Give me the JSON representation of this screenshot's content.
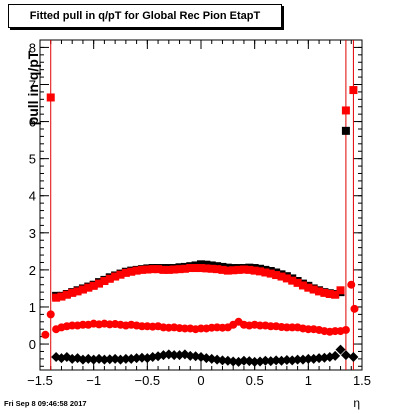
{
  "title": "Fitted pull in q/pT for Global Rec Pion EtapT",
  "ylabel": "pull in q/pT",
  "xlabel": "η",
  "footer": "Fri Sep  8 09:46:58 2017",
  "colors": {
    "black": "#000000",
    "red": "#ff0000",
    "lines": "#e00000"
  },
  "chart_data": {
    "type": "scatter",
    "xlim": [
      -1.5,
      1.5
    ],
    "ylim": [
      -0.7,
      8.2
    ],
    "xticks": [
      -1.5,
      -1,
      -0.5,
      0,
      0.5,
      1,
      1.5
    ],
    "xtick_labels": [
      "−1.5",
      "−1",
      "−0.5",
      "0",
      "0.5",
      "1",
      "1.5"
    ],
    "yticks": [
      0,
      1,
      2,
      3,
      4,
      5,
      6,
      7,
      8
    ],
    "ytick_labels": [
      "0",
      "1",
      "2",
      "3",
      "4",
      "5",
      "6",
      "7",
      "8"
    ],
    "vlines": [
      -1.4,
      1.35,
      1.42
    ],
    "series": [
      {
        "marker": "square",
        "color": "#000000",
        "points": [
          [
            -1.35,
            1.3
          ],
          [
            -1.3,
            1.3
          ],
          [
            -1.25,
            1.35
          ],
          [
            -1.2,
            1.4
          ],
          [
            -1.15,
            1.45
          ],
          [
            -1.1,
            1.5
          ],
          [
            -1.05,
            1.55
          ],
          [
            -1.0,
            1.6
          ],
          [
            -0.95,
            1.67
          ],
          [
            -0.9,
            1.73
          ],
          [
            -0.85,
            1.8
          ],
          [
            -0.8,
            1.85
          ],
          [
            -0.75,
            1.9
          ],
          [
            -0.7,
            1.95
          ],
          [
            -0.65,
            1.98
          ],
          [
            -0.6,
            2.0
          ],
          [
            -0.55,
            2.02
          ],
          [
            -0.5,
            2.04
          ],
          [
            -0.45,
            2.05
          ],
          [
            -0.4,
            2.05
          ],
          [
            -0.35,
            2.05
          ],
          [
            -0.3,
            2.05
          ],
          [
            -0.25,
            2.05
          ],
          [
            -0.2,
            2.07
          ],
          [
            -0.15,
            2.08
          ],
          [
            -0.1,
            2.1
          ],
          [
            -0.05,
            2.12
          ],
          [
            0.0,
            2.15
          ],
          [
            0.05,
            2.14
          ],
          [
            0.1,
            2.12
          ],
          [
            0.15,
            2.1
          ],
          [
            0.2,
            2.08
          ],
          [
            0.25,
            2.06
          ],
          [
            0.3,
            2.05
          ],
          [
            0.35,
            2.05
          ],
          [
            0.4,
            2.05
          ],
          [
            0.45,
            2.06
          ],
          [
            0.5,
            2.05
          ],
          [
            0.55,
            2.03
          ],
          [
            0.6,
            2.0
          ],
          [
            0.65,
            1.97
          ],
          [
            0.7,
            1.93
          ],
          [
            0.75,
            1.88
          ],
          [
            0.8,
            1.83
          ],
          [
            0.85,
            1.77
          ],
          [
            0.9,
            1.7
          ],
          [
            0.95,
            1.63
          ],
          [
            1.0,
            1.57
          ],
          [
            1.05,
            1.5
          ],
          [
            1.1,
            1.45
          ],
          [
            1.15,
            1.4
          ],
          [
            1.2,
            1.37
          ],
          [
            1.25,
            1.35
          ],
          [
            1.3,
            1.4
          ],
          [
            1.35,
            5.75
          ]
        ]
      },
      {
        "marker": "square",
        "color": "#ff0000",
        "points": [
          [
            -1.4,
            6.65
          ],
          [
            -1.35,
            1.25
          ],
          [
            -1.3,
            1.28
          ],
          [
            -1.25,
            1.33
          ],
          [
            -1.2,
            1.38
          ],
          [
            -1.15,
            1.42
          ],
          [
            -1.1,
            1.47
          ],
          [
            -1.05,
            1.52
          ],
          [
            -1.0,
            1.57
          ],
          [
            -0.95,
            1.63
          ],
          [
            -0.9,
            1.7
          ],
          [
            -0.85,
            1.76
          ],
          [
            -0.8,
            1.82
          ],
          [
            -0.75,
            1.87
          ],
          [
            -0.7,
            1.92
          ],
          [
            -0.65,
            1.95
          ],
          [
            -0.6,
            1.98
          ],
          [
            -0.55,
            2.0
          ],
          [
            -0.5,
            2.01
          ],
          [
            -0.45,
            2.02
          ],
          [
            -0.4,
            2.02
          ],
          [
            -0.35,
            2.0
          ],
          [
            -0.3,
            2.0
          ],
          [
            -0.25,
            2.01
          ],
          [
            -0.2,
            2.02
          ],
          [
            -0.15,
            2.03
          ],
          [
            -0.1,
            2.05
          ],
          [
            -0.05,
            2.05
          ],
          [
            0.0,
            2.05
          ],
          [
            0.05,
            2.04
          ],
          [
            0.1,
            2.03
          ],
          [
            0.15,
            2.02
          ],
          [
            0.2,
            2.0
          ],
          [
            0.25,
            1.98
          ],
          [
            0.3,
            1.99
          ],
          [
            0.35,
            2.0
          ],
          [
            0.4,
            2.01
          ],
          [
            0.45,
            2.0
          ],
          [
            0.5,
            1.98
          ],
          [
            0.55,
            1.96
          ],
          [
            0.6,
            1.93
          ],
          [
            0.65,
            1.9
          ],
          [
            0.7,
            1.86
          ],
          [
            0.75,
            1.82
          ],
          [
            0.8,
            1.77
          ],
          [
            0.85,
            1.71
          ],
          [
            0.9,
            1.65
          ],
          [
            0.95,
            1.58
          ],
          [
            1.0,
            1.52
          ],
          [
            1.05,
            1.47
          ],
          [
            1.1,
            1.42
          ],
          [
            1.15,
            1.38
          ],
          [
            1.2,
            1.35
          ],
          [
            1.25,
            1.33
          ],
          [
            1.3,
            1.45
          ],
          [
            1.35,
            6.3
          ],
          [
            1.42,
            6.85
          ]
        ]
      },
      {
        "marker": "circle",
        "color": "#ff0000",
        "points": [
          [
            -1.45,
            0.25
          ],
          [
            -1.4,
            0.8
          ],
          [
            -1.35,
            0.4
          ],
          [
            -1.3,
            0.45
          ],
          [
            -1.25,
            0.48
          ],
          [
            -1.2,
            0.5
          ],
          [
            -1.15,
            0.5
          ],
          [
            -1.1,
            0.52
          ],
          [
            -1.05,
            0.52
          ],
          [
            -1.0,
            0.55
          ],
          [
            -0.95,
            0.53
          ],
          [
            -0.9,
            0.55
          ],
          [
            -0.85,
            0.53
          ],
          [
            -0.8,
            0.54
          ],
          [
            -0.75,
            0.52
          ],
          [
            -0.7,
            0.5
          ],
          [
            -0.65,
            0.52
          ],
          [
            -0.6,
            0.5
          ],
          [
            -0.55,
            0.48
          ],
          [
            -0.5,
            0.48
          ],
          [
            -0.45,
            0.47
          ],
          [
            -0.4,
            0.48
          ],
          [
            -0.35,
            0.45
          ],
          [
            -0.3,
            0.44
          ],
          [
            -0.25,
            0.45
          ],
          [
            -0.2,
            0.43
          ],
          [
            -0.15,
            0.42
          ],
          [
            -0.1,
            0.42
          ],
          [
            -0.05,
            0.4
          ],
          [
            0.0,
            0.42
          ],
          [
            0.05,
            0.42
          ],
          [
            0.1,
            0.44
          ],
          [
            0.15,
            0.45
          ],
          [
            0.2,
            0.44
          ],
          [
            0.25,
            0.45
          ],
          [
            0.3,
            0.52
          ],
          [
            0.35,
            0.6
          ],
          [
            0.4,
            0.52
          ],
          [
            0.45,
            0.5
          ],
          [
            0.5,
            0.52
          ],
          [
            0.55,
            0.5
          ],
          [
            0.6,
            0.5
          ],
          [
            0.65,
            0.48
          ],
          [
            0.7,
            0.48
          ],
          [
            0.75,
            0.46
          ],
          [
            0.8,
            0.45
          ],
          [
            0.85,
            0.45
          ],
          [
            0.9,
            0.45
          ],
          [
            0.95,
            0.42
          ],
          [
            1.0,
            0.4
          ],
          [
            1.05,
            0.4
          ],
          [
            1.1,
            0.38
          ],
          [
            1.15,
            0.35
          ],
          [
            1.2,
            0.33
          ],
          [
            1.25,
            0.35
          ],
          [
            1.3,
            0.35
          ],
          [
            1.35,
            0.38
          ],
          [
            1.4,
            1.6
          ],
          [
            1.43,
            0.95
          ]
        ]
      },
      {
        "marker": "diamond",
        "color": "#000000",
        "points": [
          [
            -1.35,
            -0.35
          ],
          [
            -1.3,
            -0.38
          ],
          [
            -1.25,
            -0.35
          ],
          [
            -1.2,
            -0.4
          ],
          [
            -1.15,
            -0.38
          ],
          [
            -1.1,
            -0.42
          ],
          [
            -1.05,
            -0.4
          ],
          [
            -1.0,
            -0.42
          ],
          [
            -0.95,
            -0.4
          ],
          [
            -0.9,
            -0.42
          ],
          [
            -0.85,
            -0.41
          ],
          [
            -0.8,
            -0.4
          ],
          [
            -0.75,
            -0.42
          ],
          [
            -0.7,
            -0.4
          ],
          [
            -0.65,
            -0.4
          ],
          [
            -0.6,
            -0.38
          ],
          [
            -0.55,
            -0.37
          ],
          [
            -0.5,
            -0.38
          ],
          [
            -0.45,
            -0.35
          ],
          [
            -0.4,
            -0.33
          ],
          [
            -0.35,
            -0.3
          ],
          [
            -0.3,
            -0.28
          ],
          [
            -0.25,
            -0.3
          ],
          [
            -0.2,
            -0.3
          ],
          [
            -0.15,
            -0.28
          ],
          [
            -0.1,
            -0.32
          ],
          [
            -0.05,
            -0.33
          ],
          [
            0.0,
            -0.35
          ],
          [
            0.05,
            -0.38
          ],
          [
            0.1,
            -0.4
          ],
          [
            0.15,
            -0.42
          ],
          [
            0.2,
            -0.44
          ],
          [
            0.25,
            -0.45
          ],
          [
            0.3,
            -0.47
          ],
          [
            0.35,
            -0.48
          ],
          [
            0.4,
            -0.45
          ],
          [
            0.45,
            -0.46
          ],
          [
            0.5,
            -0.48
          ],
          [
            0.55,
            -0.47
          ],
          [
            0.6,
            -0.45
          ],
          [
            0.65,
            -0.46
          ],
          [
            0.7,
            -0.44
          ],
          [
            0.75,
            -0.45
          ],
          [
            0.8,
            -0.43
          ],
          [
            0.85,
            -0.44
          ],
          [
            0.9,
            -0.42
          ],
          [
            0.95,
            -0.42
          ],
          [
            1.0,
            -0.4
          ],
          [
            1.05,
            -0.4
          ],
          [
            1.1,
            -0.38
          ],
          [
            1.15,
            -0.37
          ],
          [
            1.2,
            -0.35
          ],
          [
            1.25,
            -0.32
          ],
          [
            1.3,
            -0.15
          ],
          [
            1.35,
            -0.3
          ],
          [
            1.42,
            -0.35
          ]
        ]
      }
    ]
  }
}
